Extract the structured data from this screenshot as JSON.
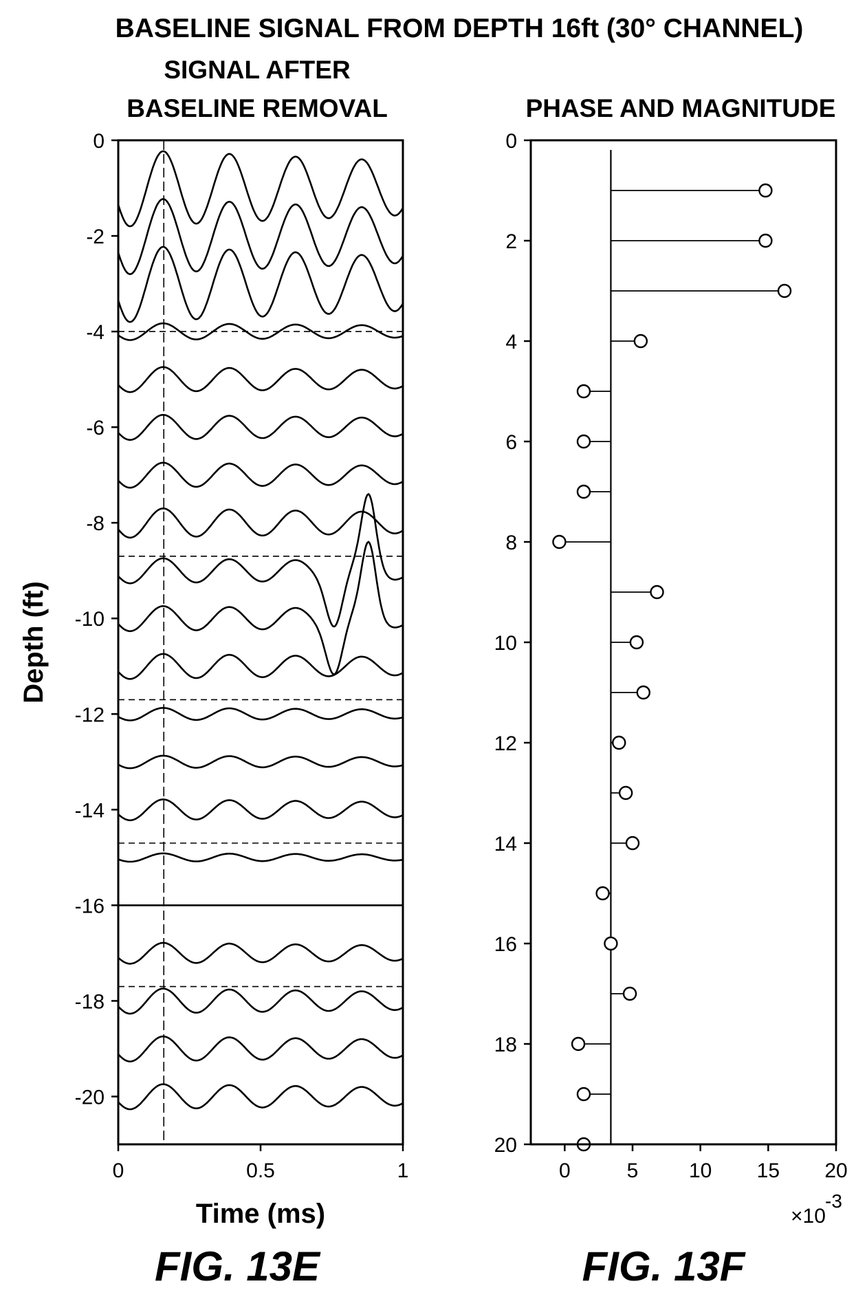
{
  "page": {
    "main_title": "BASELINE SIGNAL FROM DEPTH 16ft (30° CHANNEL)"
  },
  "chart_data": [
    {
      "type": "line",
      "title_line1": "SIGNAL AFTER",
      "title_line2": "BASELINE REMOVAL",
      "xlabel": "Time (ms)",
      "ylabel": "Depth (ft)",
      "figure_label": "FIG. 13E",
      "xlim": [
        0,
        1
      ],
      "ylim": [
        -21,
        0
      ],
      "x_ticks": [
        "0",
        "0.5",
        "1"
      ],
      "y_ticks": [
        "0",
        "-2",
        "-4",
        "-6",
        "-8",
        "-10",
        "-12",
        "-14",
        "-16",
        "-18",
        "-20"
      ],
      "vertical_marker_x": 0.16,
      "group_separators": [
        -4,
        -8.7,
        -11.7,
        -14.7,
        -17.7
      ],
      "baseline_depth": -16,
      "traces": [
        {
          "depth": -1,
          "amp": 0.9,
          "spike": null
        },
        {
          "depth": -2,
          "amp": 0.9,
          "spike": null
        },
        {
          "depth": -3,
          "amp": 0.9,
          "spike": null
        },
        {
          "depth": -4,
          "amp": 0.2,
          "spike": null
        },
        {
          "depth": -5,
          "amp": 0.3,
          "spike": null
        },
        {
          "depth": -6,
          "amp": 0.3,
          "spike": null
        },
        {
          "depth": -7,
          "amp": 0.3,
          "spike": null
        },
        {
          "depth": -8,
          "amp": 0.35,
          "spike": null
        },
        {
          "depth": -9,
          "amp": 0.3,
          "spike": 0.88
        },
        {
          "depth": -10,
          "amp": 0.3,
          "spike": 0.88
        },
        {
          "depth": -11,
          "amp": 0.3,
          "spike": null
        },
        {
          "depth": -12,
          "amp": 0.15,
          "spike": null
        },
        {
          "depth": -13,
          "amp": 0.15,
          "spike": null
        },
        {
          "depth": -14,
          "amp": 0.25,
          "spike": null
        },
        {
          "depth": -15,
          "amp": 0.1,
          "spike": null
        },
        {
          "depth": -16,
          "amp": 0,
          "spike": null
        },
        {
          "depth": -17,
          "amp": 0.25,
          "spike": null
        },
        {
          "depth": -18,
          "amp": 0.3,
          "spike": null
        },
        {
          "depth": -19,
          "amp": 0.3,
          "spike": null
        },
        {
          "depth": -20,
          "amp": 0.3,
          "spike": null
        }
      ]
    },
    {
      "type": "scatter",
      "title": "PHASE AND MAGNITUDE",
      "xlabel": "",
      "ylabel": "",
      "figure_label": "FIG. 13F",
      "x_multiplier": "×10",
      "x_multiplier_exp": "-3",
      "xlim": [
        -2.5,
        20
      ],
      "ylim": [
        0,
        20
      ],
      "x_ticks": [
        "0",
        "5",
        "10",
        "15",
        "20"
      ],
      "y_ticks": [
        "0",
        "2",
        "4",
        "6",
        "8",
        "10",
        "12",
        "14",
        "16",
        "18",
        "20"
      ],
      "reference_x": 3.4,
      "points": [
        {
          "y": 1,
          "x": 14.8
        },
        {
          "y": 2,
          "x": 14.8
        },
        {
          "y": 3,
          "x": 16.2
        },
        {
          "y": 4,
          "x": 5.6
        },
        {
          "y": 5,
          "x": 1.4
        },
        {
          "y": 6,
          "x": 1.4
        },
        {
          "y": 7,
          "x": 1.4
        },
        {
          "y": 8,
          "x": -0.4
        },
        {
          "y": 9,
          "x": 6.8
        },
        {
          "y": 10,
          "x": 5.3
        },
        {
          "y": 11,
          "x": 5.8
        },
        {
          "y": 12,
          "x": 4.0
        },
        {
          "y": 13,
          "x": 4.5
        },
        {
          "y": 14,
          "x": 5.0
        },
        {
          "y": 15,
          "x": 2.8
        },
        {
          "y": 16,
          "x": 3.4
        },
        {
          "y": 17,
          "x": 4.8
        },
        {
          "y": 18,
          "x": 1.0
        },
        {
          "y": 19,
          "x": 1.4
        },
        {
          "y": 20,
          "x": 1.4
        }
      ]
    }
  ]
}
